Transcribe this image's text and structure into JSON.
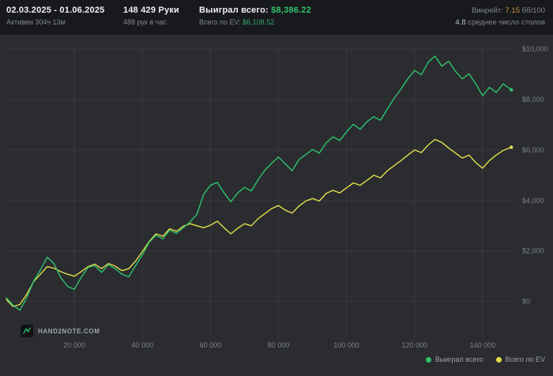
{
  "header": {
    "date_range": "02.03.2025 - 01.06.2025",
    "active_time": "Активен 304ч 13м",
    "hands": "148 429 Руки",
    "hands_per_hour": "488 рук в час",
    "won_label": "Выиграл всего:",
    "won_value": "$8,386.22",
    "ev_label": "Всего по EV:",
    "ev_value": "$6,108.52",
    "winrate_label": "Винрейт:",
    "winrate_value": "7.15",
    "winrate_unit": "бб/100",
    "tables_value": "4.8",
    "tables_label": "среднее число столов"
  },
  "footer": {
    "logo_text": "HAND2NOTE.COM"
  },
  "colors": {
    "header_bg": "#17191c",
    "chart_bg": "#2a2c2f",
    "won_green": "#2fc26e",
    "ev_yellow": "#e2de4a",
    "ev_value_green": "#3aa76d",
    "winrate_amber": "#c9923a",
    "text_secondary": "#84888c"
  },
  "chart_data": {
    "type": "line",
    "title": "",
    "xlabel": "",
    "ylabel": "",
    "grid": true,
    "legend_position": "bottom-right",
    "grid_color": "#37393c",
    "tick_color": "#7e8286",
    "xlim": [
      0,
      150000
    ],
    "ylim": [
      -1450,
      10190
    ],
    "xticks": [
      {
        "value": 20000,
        "label": "20 000"
      },
      {
        "value": 40000,
        "label": "40 000"
      },
      {
        "value": 60000,
        "label": "60 000"
      },
      {
        "value": 80000,
        "label": "80 000"
      },
      {
        "value": 100000,
        "label": "100 000"
      },
      {
        "value": 120000,
        "label": "120 000"
      },
      {
        "value": 140000,
        "label": "140 000"
      }
    ],
    "yticks": [
      {
        "value": 0,
        "label": "$0"
      },
      {
        "value": 2000,
        "label": "$2,000"
      },
      {
        "value": 4000,
        "label": "$4,000"
      },
      {
        "value": 6000,
        "label": "$6,000"
      },
      {
        "value": 8000,
        "label": "$8,000"
      },
      {
        "value": 10000,
        "label": "$10,000"
      }
    ],
    "series": [
      {
        "key": "won",
        "name": "Выиграл всего",
        "color": "#2fc26e",
        "final_value": 8386.22,
        "x": [
          0,
          2000,
          4000,
          6000,
          8000,
          10000,
          12000,
          14000,
          16000,
          18000,
          20000,
          22000,
          24000,
          26000,
          28000,
          30000,
          32000,
          34000,
          36000,
          38000,
          40000,
          42000,
          44000,
          46000,
          48000,
          50000,
          52000,
          54000,
          56000,
          58000,
          60000,
          62000,
          64000,
          66000,
          68000,
          70000,
          72000,
          74000,
          76000,
          78000,
          80000,
          82000,
          84000,
          86000,
          88000,
          90000,
          92000,
          94000,
          96000,
          98000,
          100000,
          102000,
          104000,
          106000,
          108000,
          110000,
          112000,
          114000,
          116000,
          118000,
          120000,
          122000,
          124000,
          126000,
          128000,
          130000,
          132000,
          134000,
          136000,
          138000,
          140000,
          142000,
          144000,
          146000,
          148429
        ],
        "y": [
          150,
          -150,
          -350,
          150,
          800,
          1250,
          1750,
          1500,
          950,
          600,
          480,
          950,
          1350,
          1420,
          1150,
          1450,
          1300,
          1080,
          980,
          1420,
          1850,
          2350,
          2620,
          2480,
          2820,
          2700,
          2920,
          3150,
          3450,
          4250,
          4600,
          4720,
          4300,
          3950,
          4300,
          4520,
          4380,
          4820,
          5200,
          5480,
          5720,
          5450,
          5180,
          5620,
          5820,
          6020,
          5880,
          6280,
          6520,
          6380,
          6720,
          7020,
          6820,
          7120,
          7320,
          7180,
          7620,
          8050,
          8420,
          8820,
          9150,
          8980,
          9480,
          9720,
          9320,
          9520,
          9120,
          8820,
          9020,
          8620,
          8150,
          8480,
          8280,
          8620,
          8386.22
        ]
      },
      {
        "key": "ev",
        "name": "Всего по EV",
        "color": "#e2de4a",
        "final_value": 6108.52,
        "x": [
          0,
          2000,
          4000,
          6000,
          8000,
          10000,
          12000,
          14000,
          16000,
          18000,
          20000,
          22000,
          24000,
          26000,
          28000,
          30000,
          32000,
          34000,
          36000,
          38000,
          40000,
          42000,
          44000,
          46000,
          48000,
          50000,
          52000,
          54000,
          56000,
          58000,
          60000,
          62000,
          64000,
          66000,
          68000,
          70000,
          72000,
          74000,
          76000,
          78000,
          80000,
          82000,
          84000,
          86000,
          88000,
          90000,
          92000,
          94000,
          96000,
          98000,
          100000,
          102000,
          104000,
          106000,
          108000,
          110000,
          112000,
          114000,
          116000,
          118000,
          120000,
          122000,
          124000,
          126000,
          128000,
          130000,
          132000,
          134000,
          136000,
          138000,
          140000,
          142000,
          144000,
          146000,
          148429
        ],
        "y": [
          80,
          -200,
          -120,
          280,
          780,
          1080,
          1380,
          1320,
          1180,
          1080,
          1000,
          1180,
          1380,
          1480,
          1300,
          1500,
          1400,
          1220,
          1300,
          1600,
          1980,
          2380,
          2680,
          2580,
          2880,
          2780,
          2980,
          3080,
          3000,
          2920,
          3020,
          3180,
          2920,
          2680,
          2900,
          3080,
          3000,
          3280,
          3480,
          3680,
          3800,
          3620,
          3500,
          3780,
          3980,
          4080,
          3980,
          4280,
          4400,
          4300,
          4500,
          4700,
          4600,
          4800,
          5000,
          4900,
          5180,
          5380,
          5580,
          5800,
          6000,
          5900,
          6200,
          6420,
          6300,
          6080,
          5880,
          5680,
          5800,
          5500,
          5280,
          5580,
          5800,
          5980,
          6108.52
        ]
      }
    ]
  }
}
